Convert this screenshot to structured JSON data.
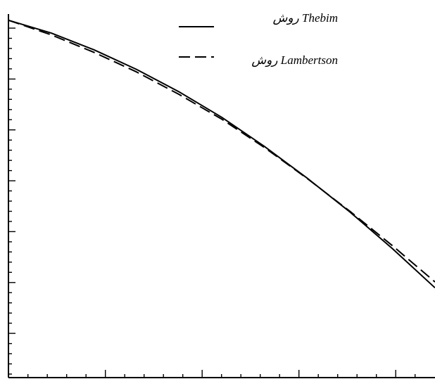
{
  "chart_data": {
    "type": "line",
    "title": "",
    "xlabel": "",
    "ylabel": "",
    "xlim": [
      0,
      1
    ],
    "ylim": [
      0,
      1
    ],
    "grid": false,
    "legend_position": "top-right",
    "series": [
      {
        "name": "روش Thebim",
        "style": "solid",
        "color": "#000000",
        "x": [
          0,
          0.1,
          0.2,
          0.3,
          0.4,
          0.5,
          0.6,
          0.7,
          0.8,
          0.9,
          1.0
        ],
        "y": [
          0.983,
          0.948,
          0.902,
          0.848,
          0.786,
          0.716,
          0.636,
          0.549,
          0.456,
          0.355,
          0.247
        ]
      },
      {
        "name": "روش Lambertson",
        "style": "dashed",
        "color": "#000000",
        "x": [
          0,
          0.1,
          0.2,
          0.3,
          0.4,
          0.5,
          0.6,
          0.7,
          0.8,
          0.9,
          1.0
        ],
        "y": [
          0.983,
          0.943,
          0.895,
          0.841,
          0.779,
          0.711,
          0.633,
          0.548,
          0.458,
          0.363,
          0.263
        ]
      }
    ]
  }
}
